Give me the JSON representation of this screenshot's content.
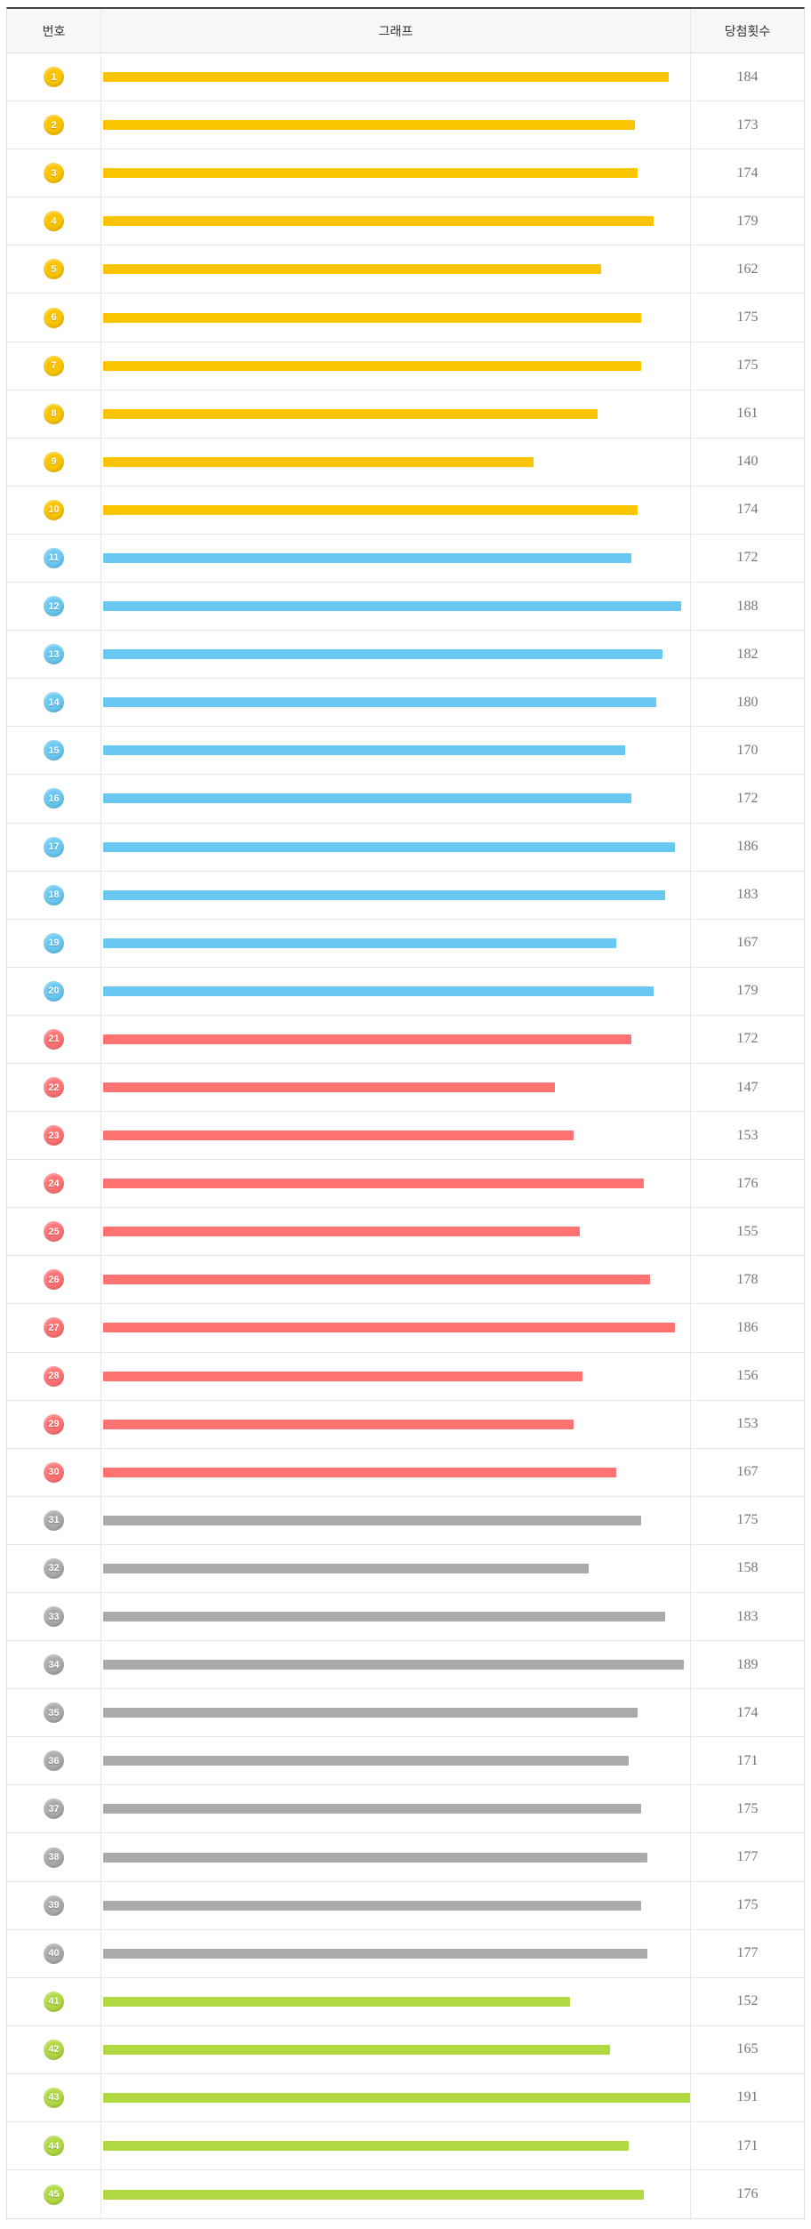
{
  "table": {
    "columns": {
      "number": "번호",
      "graph": "그래프",
      "count": "당첨횟수"
    }
  },
  "colors": {
    "top_border": "#434343",
    "grid_border": "#e8e8e8",
    "header_bg": "#f7f7f8",
    "header_text": "#333333",
    "count_text": "#75757d",
    "ball_groups": [
      {
        "from": 1,
        "to": 10,
        "color": "#fbc400",
        "name": "yellow"
      },
      {
        "from": 11,
        "to": 20,
        "color": "#69c8f2",
        "name": "blue"
      },
      {
        "from": 21,
        "to": 30,
        "color": "#ff7272",
        "name": "red"
      },
      {
        "from": 31,
        "to": 40,
        "color": "#aaaaaa",
        "name": "gray"
      },
      {
        "from": 41,
        "to": 45,
        "color": "#b0d840",
        "name": "green"
      }
    ]
  },
  "chart_data": {
    "type": "bar",
    "orientation": "horizontal",
    "title": "",
    "xlabel": "당첨횟수",
    "ylabel": "번호",
    "categories": [
      1,
      2,
      3,
      4,
      5,
      6,
      7,
      8,
      9,
      10,
      11,
      12,
      13,
      14,
      15,
      16,
      17,
      18,
      19,
      20,
      21,
      22,
      23,
      24,
      25,
      26,
      27,
      28,
      29,
      30,
      31,
      32,
      33,
      34,
      35,
      36,
      37,
      38,
      39,
      40,
      41,
      42,
      43,
      44,
      45
    ],
    "values": [
      184,
      173,
      174,
      179,
      162,
      175,
      175,
      161,
      140,
      174,
      172,
      188,
      182,
      180,
      170,
      172,
      186,
      183,
      167,
      179,
      172,
      147,
      153,
      176,
      155,
      178,
      186,
      156,
      153,
      167,
      175,
      158,
      183,
      189,
      174,
      171,
      175,
      177,
      175,
      177,
      152,
      165,
      191,
      171,
      176
    ],
    "value_axis_range": [
      0,
      191
    ],
    "grid": false,
    "legend": false,
    "bar_colors_by_number_group": {
      "1-10": "#fbc400",
      "11-20": "#69c8f2",
      "21-30": "#ff7272",
      "31-40": "#aaaaaa",
      "41-45": "#b0d840"
    }
  }
}
